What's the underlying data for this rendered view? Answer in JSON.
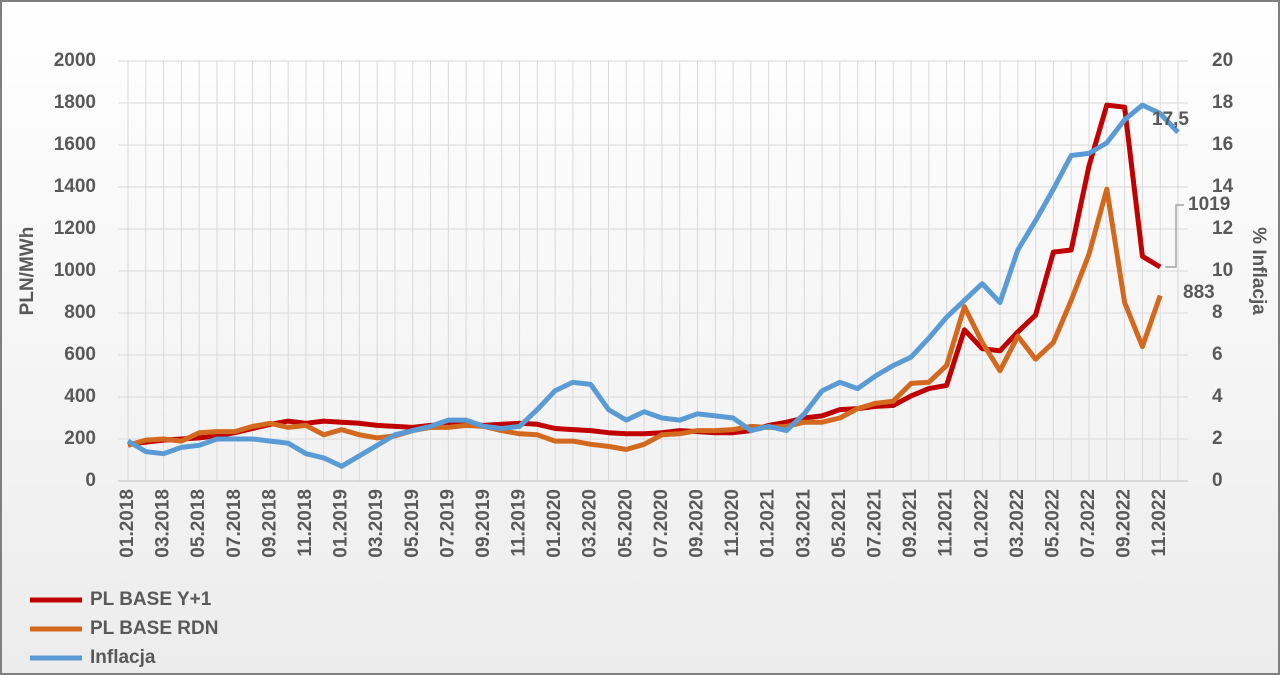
{
  "chart_data": {
    "type": "line",
    "y_label": "PLN/MWh",
    "y2_label": "% Inflacja",
    "categories": [
      "01.2018",
      null,
      "03.2018",
      null,
      "05.2018",
      null,
      "07.2018",
      null,
      "09.2018",
      null,
      "11.2018",
      null,
      "01.2019",
      null,
      "03.2019",
      null,
      "05.2019",
      null,
      "07.2019",
      null,
      "09.2019",
      null,
      "11.2019",
      null,
      "01.2020",
      null,
      "03.2020",
      null,
      "05.2020",
      null,
      "07.2020",
      null,
      "09.2020",
      null,
      "11.2020",
      null,
      "01.2021",
      null,
      "03.2021",
      null,
      "05.2021",
      null,
      "07.2021",
      null,
      "09.2021",
      null,
      "11.2021",
      null,
      "01.2022",
      null,
      "03.2022",
      null,
      "05.2022",
      null,
      "07.2022",
      null,
      "09.2022",
      null,
      "11.2022",
      null
    ],
    "series": [
      {
        "name": "PL BASE Y+1",
        "color": "#c00000",
        "axis": "y",
        "values": [
          175,
          185,
          195,
          200,
          205,
          215,
          230,
          250,
          270,
          285,
          275,
          285,
          280,
          275,
          265,
          260,
          255,
          265,
          270,
          270,
          265,
          270,
          275,
          270,
          250,
          245,
          240,
          230,
          225,
          225,
          230,
          240,
          235,
          230,
          230,
          240,
          265,
          280,
          300,
          310,
          340,
          345,
          355,
          360,
          405,
          440,
          455,
          720,
          630,
          620,
          710,
          790,
          1090,
          1100,
          1500,
          1790,
          1780,
          1070,
          1019,
          null
        ],
        "value_labels": [
          null,
          null,
          null,
          null,
          null,
          null,
          null,
          null,
          null,
          null,
          null,
          null,
          null,
          null,
          null,
          null,
          null,
          null,
          null,
          null,
          null,
          null,
          null,
          null,
          null,
          null,
          null,
          null,
          null,
          null,
          null,
          null,
          null,
          null,
          null,
          null,
          null,
          null,
          null,
          null,
          null,
          null,
          null,
          null,
          null,
          null,
          null,
          null,
          null,
          null,
          null,
          null,
          null,
          null,
          null,
          null,
          null,
          null,
          "1019",
          null
        ]
      },
      {
        "name": "PL BASE RDN",
        "color": "#d2691e",
        "axis": "y",
        "values": [
          170,
          195,
          200,
          190,
          230,
          235,
          235,
          260,
          275,
          255,
          265,
          220,
          245,
          220,
          205,
          215,
          240,
          255,
          255,
          265,
          260,
          240,
          225,
          220,
          190,
          190,
          175,
          165,
          150,
          175,
          220,
          225,
          240,
          240,
          245,
          260,
          255,
          260,
          280,
          280,
          300,
          345,
          370,
          380,
          465,
          470,
          550,
          830,
          660,
          525,
          690,
          580,
          660,
          860,
          1080,
          1390,
          850,
          640,
          883,
          null
        ],
        "value_labels": [
          null,
          null,
          null,
          null,
          null,
          null,
          null,
          null,
          null,
          null,
          null,
          null,
          null,
          null,
          null,
          null,
          null,
          null,
          null,
          null,
          null,
          null,
          null,
          null,
          null,
          null,
          null,
          null,
          null,
          null,
          null,
          null,
          null,
          null,
          null,
          null,
          null,
          null,
          null,
          null,
          null,
          null,
          null,
          null,
          null,
          null,
          null,
          null,
          null,
          null,
          null,
          null,
          null,
          null,
          null,
          null,
          null,
          null,
          "883",
          null
        ]
      },
      {
        "name": "Inflacja",
        "color": "#5b9bd5",
        "axis": "y2",
        "values": [
          1.9,
          1.4,
          1.3,
          1.6,
          1.7,
          2.0,
          2.0,
          2.0,
          1.9,
          1.8,
          1.3,
          1.1,
          0.7,
          1.2,
          1.7,
          2.2,
          2.4,
          2.6,
          2.9,
          2.9,
          2.6,
          2.5,
          2.6,
          3.4,
          4.3,
          4.7,
          4.6,
          3.4,
          2.9,
          3.3,
          3.0,
          2.9,
          3.2,
          3.1,
          3.0,
          2.4,
          2.6,
          2.4,
          3.2,
          4.3,
          4.7,
          4.4,
          5.0,
          5.5,
          5.9,
          6.8,
          7.8,
          8.6,
          9.4,
          8.5,
          11.0,
          12.4,
          13.9,
          15.5,
          15.6,
          16.1,
          17.2,
          17.9,
          17.5,
          16.6
        ],
        "value_labels": [
          null,
          null,
          null,
          null,
          null,
          null,
          null,
          null,
          null,
          null,
          null,
          null,
          null,
          null,
          null,
          null,
          null,
          null,
          null,
          null,
          null,
          null,
          null,
          null,
          null,
          null,
          null,
          null,
          null,
          null,
          null,
          null,
          null,
          null,
          null,
          null,
          null,
          null,
          null,
          null,
          null,
          null,
          null,
          null,
          null,
          null,
          null,
          null,
          null,
          null,
          null,
          null,
          null,
          null,
          null,
          null,
          null,
          null,
          "17,5",
          null
        ]
      }
    ],
    "ylim": [
      0,
      2000
    ],
    "yticks": [
      0,
      200,
      400,
      600,
      800,
      1000,
      1200,
      1400,
      1600,
      1800,
      2000
    ],
    "y2lim": [
      0,
      20
    ],
    "y2ticks": [
      0,
      2,
      4,
      6,
      8,
      10,
      12,
      14,
      16,
      18,
      20
    ],
    "grid": true,
    "legend": "bottom-left"
  }
}
